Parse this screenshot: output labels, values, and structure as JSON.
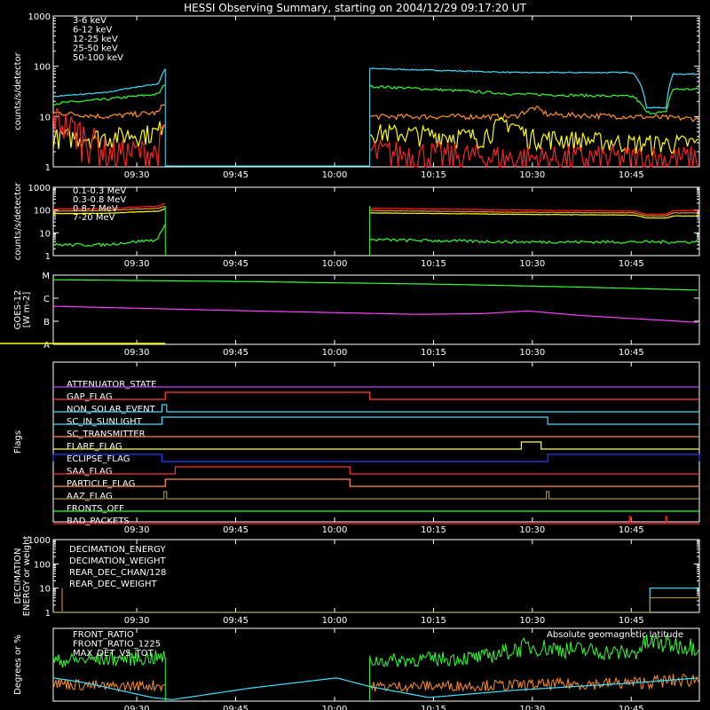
{
  "title": "HESSI Observing Summary, starting on 2004/12/29 09:17:20 UT",
  "colors": {
    "bg": "#000000",
    "axis": "#ffffff",
    "red": "#ff2020",
    "orange": "#ff9020",
    "yellow": "#ffff00",
    "green": "#30ff30",
    "cyan": "#40e0ff",
    "magenta": "#ff40ff",
    "blue": "#2040ff",
    "salmon": "#ff5050",
    "olive": "#a09040",
    "lime": "#20ff60"
  },
  "chart_data": [
    {
      "type": "line",
      "name": "light-curves",
      "ylabel": "counts/s/detector",
      "yscale": "log",
      "ylim": [
        1,
        1000
      ],
      "y_ticks": [
        "1",
        "10",
        "100",
        "1000"
      ],
      "x_ticks": [
        "09:30",
        "09:45",
        "10:00",
        "10:15",
        "10:30",
        "10:45"
      ],
      "x_minutes": [
        12.67,
        27.67,
        42.67,
        57.67,
        72.67,
        87.67
      ],
      "xlim_minutes": [
        0,
        98
      ],
      "legend": [
        {
          "label": "3-6 keV",
          "color": "#ff2020"
        },
        {
          "label": "6-12 keV",
          "color": "#ff9020"
        },
        {
          "label": "12-25 keV",
          "color": "#ffff00"
        },
        {
          "label": "25-50 keV",
          "color": "#30ff30"
        },
        {
          "label": "50-100 keV",
          "color": "#40e0ff"
        }
      ],
      "series": [
        {
          "name": "50-100 keV",
          "segments": [
            [
              [
                0,
                25
              ],
              [
                8,
                30
              ],
              [
                16,
                45
              ],
              [
                17,
                90
              ]
            ],
            [
              [
                48,
                90
              ],
              [
                70,
                75
              ],
              [
                88,
                75
              ],
              [
                90,
                15
              ],
              [
                93,
                15
              ],
              [
                94,
                70
              ],
              [
                98,
                70
              ]
            ]
          ]
        },
        {
          "name": "25-50 keV",
          "segments": [
            [
              [
                0,
                18
              ],
              [
                8,
                22
              ],
              [
                16,
                28
              ],
              [
                17,
                45
              ]
            ],
            [
              [
                48,
                40
              ],
              [
                70,
                28
              ],
              [
                88,
                25
              ],
              [
                90,
                12
              ],
              [
                93,
                12
              ],
              [
                94,
                35
              ],
              [
                98,
                35
              ]
            ]
          ]
        },
        {
          "name": "6-12 keV",
          "segments": [
            [
              [
                0,
                12
              ],
              [
                8,
                10
              ],
              [
                16,
                12
              ],
              [
                17,
                20
              ]
            ],
            [
              [
                48,
                10
              ],
              [
                65,
                10
              ],
              [
                70,
                10
              ],
              [
                73,
                15
              ],
              [
                75,
                11
              ],
              [
                88,
                10
              ],
              [
                98,
                9
              ]
            ]
          ]
        },
        {
          "name": "12-25 keV",
          "segments": [
            [
              [
                0,
                4
              ],
              [
                8,
                4
              ],
              [
                16,
                5
              ],
              [
                17,
                10
              ]
            ],
            [
              [
                48,
                5
              ],
              [
                65,
                4
              ],
              [
                69,
                8
              ],
              [
                72,
                4
              ],
              [
                88,
                3
              ],
              [
                98,
                3
              ]
            ]
          ]
        },
        {
          "name": "3-6 keV",
          "segments": [
            [
              [
                0,
                10
              ],
              [
                3,
                6
              ],
              [
                8,
                2
              ],
              [
                16,
                2
              ],
              [
                17,
                6
              ]
            ],
            [
              [
                48,
                2
              ],
              [
                70,
                1.5
              ],
              [
                88,
                1.5
              ],
              [
                98,
                1.5
              ]
            ]
          ]
        }
      ]
    },
    {
      "type": "line",
      "name": "gamma-curves",
      "ylabel": "counts/s/detector",
      "yscale": "log",
      "ylim": [
        1,
        1000
      ],
      "y_ticks": [
        "1",
        "10",
        "100",
        "1000"
      ],
      "x_ticks": [
        "09:30",
        "09:45",
        "10:00",
        "10:15",
        "10:30",
        "10:45"
      ],
      "legend": [
        {
          "label": "0.1-0.3 MeV",
          "color": "#ff2020"
        },
        {
          "label": "0.3-0.8 MeV",
          "color": "#ff9020"
        },
        {
          "label": "0.8-7 MeV",
          "color": "#ffff00"
        },
        {
          "label": "7-20 MeV",
          "color": "#30ff30"
        }
      ],
      "series": [
        {
          "name": "0.1-0.3 MeV",
          "segments": [
            [
              [
                0,
                110
              ],
              [
                8,
                115
              ],
              [
                16,
                150
              ],
              [
                17,
                200
              ]
            ],
            [
              [
                48,
                120
              ],
              [
                70,
                100
              ],
              [
                88,
                90
              ],
              [
                90,
                65
              ],
              [
                93,
                65
              ],
              [
                94,
                95
              ],
              [
                98,
                95
              ]
            ]
          ]
        },
        {
          "name": "0.3-0.8 MeV",
          "segments": [
            [
              [
                0,
                90
              ],
              [
                8,
                95
              ],
              [
                16,
                120
              ],
              [
                17,
                150
              ]
            ],
            [
              [
                48,
                95
              ],
              [
                70,
                80
              ],
              [
                88,
                75
              ],
              [
                90,
                55
              ],
              [
                93,
                55
              ],
              [
                94,
                75
              ],
              [
                98,
                75
              ]
            ]
          ]
        },
        {
          "name": "0.8-7 MeV",
          "segments": [
            [
              [
                0,
                70
              ],
              [
                8,
                72
              ],
              [
                16,
                90
              ],
              [
                17,
                115
              ]
            ],
            [
              [
                48,
                75
              ],
              [
                70,
                65
              ],
              [
                88,
                60
              ],
              [
                90,
                45
              ],
              [
                93,
                45
              ],
              [
                94,
                55
              ],
              [
                98,
                55
              ]
            ]
          ]
        },
        {
          "name": "7-20 MeV",
          "segments": [
            [
              [
                0,
                3
              ],
              [
                8,
                3
              ],
              [
                16,
                5
              ],
              [
                17,
                25
              ]
            ],
            [
              [
                48,
                5
              ],
              [
                70,
                4
              ],
              [
                88,
                4
              ],
              [
                98,
                4
              ]
            ]
          ]
        }
      ]
    },
    {
      "type": "line",
      "name": "goes",
      "ylabel": "GOES-12",
      "ylabel2": "[W m-2]",
      "y_ticks": [
        "A",
        "B",
        "C",
        "M"
      ],
      "x_ticks": [
        "09:30",
        "09:45",
        "10:00",
        "10:15",
        "10:30",
        "10:45"
      ],
      "series": [
        {
          "name": "long",
          "class_level": [
            [
              0,
              2.8
            ],
            [
              30,
              2.72
            ],
            [
              60,
              2.6
            ],
            [
              80,
              2.48
            ],
            [
              98,
              2.35
            ]
          ]
        },
        {
          "name": "short",
          "class_level": [
            [
              0,
              1.65
            ],
            [
              30,
              1.45
            ],
            [
              55,
              1.3
            ],
            [
              65,
              1.33
            ],
            [
              72,
              1.45
            ],
            [
              80,
              1.25
            ],
            [
              98,
              0.95
            ]
          ]
        }
      ]
    },
    {
      "type": "line",
      "name": "flags",
      "ylabel": "Flags",
      "x_ticks": [
        "09:30",
        "09:45",
        "10:00",
        "10:15",
        "10:30",
        "10:45"
      ],
      "flags": [
        {
          "label": "ATTENUATOR_STATE",
          "color": "#c040ff",
          "on": []
        },
        {
          "label": "GAP_FLAG",
          "color": "#ff4040",
          "on": [
            [
              17,
              48
            ]
          ]
        },
        {
          "label": "NON_SOLAR_EVENT",
          "color": "#40e0ff",
          "on": [
            [
              16.5,
              17.2
            ]
          ]
        },
        {
          "label": "SC_IN_SUNLIGHT",
          "color": "#40e0ff",
          "on": [
            [
              16.5,
              75
            ]
          ]
        },
        {
          "label": "SC_TRANSMITTER",
          "color": "#ff8040",
          "on": []
        },
        {
          "label": "FLARE_FLAG",
          "color": "#ffff40",
          "on": [
            [
              71,
              74
            ]
          ]
        },
        {
          "label": "ECLIPSE_FLAG",
          "color": "#2040ff",
          "on": [
            [
              0,
              16.5
            ],
            [
              75,
              98
            ]
          ]
        },
        {
          "label": "SAA_FLAG",
          "color": "#ff3030",
          "on": [
            [
              18.5,
              45
            ]
          ]
        },
        {
          "label": "PARTICLE_FLAG",
          "color": "#ff9050",
          "on": [
            [
              17,
              45
            ]
          ]
        },
        {
          "label": "AAZ_FLAG",
          "color": "#a09040",
          "on": [
            [
              16.8,
              17.2
            ],
            [
              74.8,
              75.2
            ]
          ]
        },
        {
          "label": "FRONTS_OFF",
          "color": "#30ff30",
          "on": []
        },
        {
          "label": "BAD_PACKETS",
          "color": "#ff2020",
          "on": [
            [
              87.4,
              87.6
            ],
            [
              92.9,
              93.1
            ]
          ]
        }
      ]
    },
    {
      "type": "line",
      "name": "decimation",
      "ylabel": "DECIMATION",
      "ylabel2": "ENERGY or weight",
      "yscale": "log",
      "y_ticks": [
        "1",
        "10",
        "100",
        "1000"
      ],
      "x_ticks": [
        "09:30",
        "09:45",
        "10:00",
        "10:15",
        "10:30",
        "10:45"
      ],
      "legend": [
        {
          "label": "DECIMATION_ENERGY",
          "color": "#30ff30"
        },
        {
          "label": "DECIMATION_WEIGHT",
          "color": "#ff9020"
        },
        {
          "label": "REAR_DEC_CHAN/128",
          "color": "#40e0ff"
        },
        {
          "label": "REAR_DEC_WEIGHT",
          "color": "#a09040"
        }
      ],
      "series": [
        {
          "name": "REAR_DEC_CHAN/128",
          "steps": [
            [
              0,
              1
            ],
            [
              90.5,
              1
            ],
            [
              90.5,
              10
            ],
            [
              98,
              10
            ]
          ]
        },
        {
          "name": "REAR_DEC_WEIGHT",
          "steps": [
            [
              0,
              1
            ],
            [
              90.5,
              1
            ],
            [
              90.5,
              4
            ],
            [
              98,
              4
            ]
          ]
        }
      ]
    },
    {
      "type": "line",
      "name": "ratios",
      "ylabel": "Degrees or %",
      "ylim": [
        0,
        100
      ],
      "x_ticks": [
        "09:30",
        "09:45",
        "10:00",
        "10:15",
        "10:30",
        "10:45"
      ],
      "legend": [
        {
          "label": "FRONT_RATIO",
          "color": "#30ff30"
        },
        {
          "label": "FRONT_RATIO_1225",
          "color": "#30ff30"
        },
        {
          "label": "MAX_DET_VS_TOT",
          "color": "#ff9020"
        }
      ],
      "annotation": {
        "label": "Absolute geomagnetic latitude",
        "color": "#40e0ff"
      },
      "series": [
        {
          "name": "FRONT_RATIO",
          "segments": [
            [
              [
                0,
                55
              ],
              [
                8,
                58
              ],
              [
                17,
                60
              ]
            ],
            [
              [
                48,
                55
              ],
              [
                65,
                60
              ],
              [
                72,
                75
              ],
              [
                88,
                65
              ],
              [
                90,
                80
              ],
              [
                98,
                75
              ]
            ]
          ]
        },
        {
          "name": "MAX_DET_VS_TOT",
          "segments": [
            [
              [
                0,
                25
              ],
              [
                8,
                20
              ],
              [
                17,
                22
              ]
            ],
            [
              [
                48,
                20
              ],
              [
                70,
                22
              ],
              [
                88,
                25
              ],
              [
                98,
                30
              ]
            ]
          ]
        },
        {
          "name": "Absolute geomagnetic latitude",
          "values": [
            [
              0,
              32
            ],
            [
              5,
              25
            ],
            [
              15,
              5
            ],
            [
              18,
              2
            ],
            [
              30,
              18
            ],
            [
              43,
              32
            ],
            [
              48,
              20
            ],
            [
              57,
              5
            ],
            [
              70,
              15
            ],
            [
              88,
              25
            ],
            [
              98,
              32
            ]
          ]
        }
      ]
    }
  ]
}
